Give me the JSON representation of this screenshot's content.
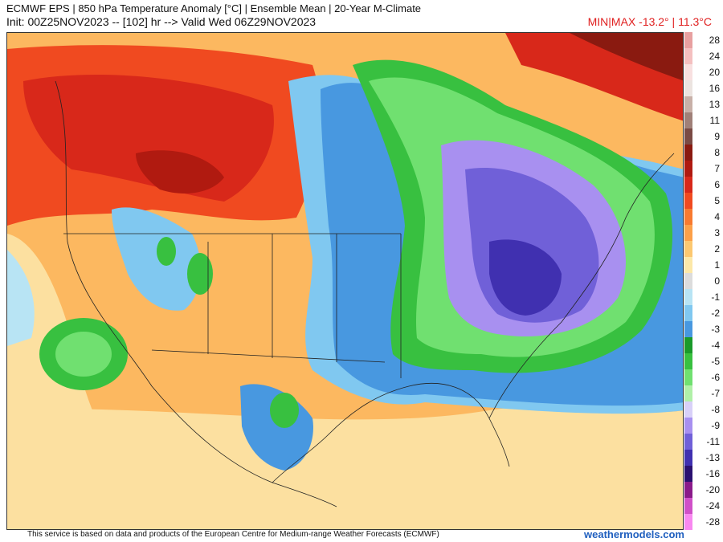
{
  "header": {
    "title_line1": "ECMWF EPS | 850 hPa Temperature Anomaly [°C] | Ensemble Mean | 20-Year M-Climate",
    "title_line2": "Init: 00Z25NOV2023 -- [102] hr --> Valid Wed 06Z29NOV2023",
    "minmax": "MIN|MAX -13.2° | 11.3°C"
  },
  "legend": {
    "levels": [
      {
        "label": "28",
        "color": "#e8a0a0"
      },
      {
        "label": "24",
        "color": "#f4c0c0"
      },
      {
        "label": "20",
        "color": "#f8e0e0"
      },
      {
        "label": "16",
        "color": "#ece4e0"
      },
      {
        "label": "13",
        "color": "#c8b0a8"
      },
      {
        "label": "11",
        "color": "#a08078"
      },
      {
        "label": "9",
        "color": "#7a4a44"
      },
      {
        "label": "8",
        "color": "#8a1a10"
      },
      {
        "label": "7",
        "color": "#b01a10"
      },
      {
        "label": "6",
        "color": "#d8281a"
      },
      {
        "label": "5",
        "color": "#f04a20"
      },
      {
        "label": "4",
        "color": "#f87a30"
      },
      {
        "label": "3",
        "color": "#fca048"
      },
      {
        "label": "2",
        "color": "#fcc870"
      },
      {
        "label": "1",
        "color": "#fce8a8"
      },
      {
        "label": "0",
        "color": "#dcdcdc"
      },
      {
        "label": "-1",
        "color": "#b8e4f4"
      },
      {
        "label": "-2",
        "color": "#80c8f0"
      },
      {
        "label": "-3",
        "color": "#4898e0"
      },
      {
        "label": "-4",
        "color": "#1a9a2a"
      },
      {
        "label": "-5",
        "color": "#38c040"
      },
      {
        "label": "-6",
        "color": "#70e070"
      },
      {
        "label": "-7",
        "color": "#b0f0a8"
      },
      {
        "label": "-8",
        "color": "#d8d0f8"
      },
      {
        "label": "-9",
        "color": "#a890f0"
      },
      {
        "label": "-11",
        "color": "#7060d8"
      },
      {
        "label": "-13",
        "color": "#4030b0"
      },
      {
        "label": "-16",
        "color": "#2a1070"
      },
      {
        "label": "-20",
        "color": "#8a1a8a"
      },
      {
        "label": "-24",
        "color": "#d050c8"
      },
      {
        "label": "-28",
        "color": "#f888f0"
      }
    ]
  },
  "map": {
    "background_color": "#fcb860",
    "ocean_color": "#fce0a0",
    "warm_core_color": "#e83a20",
    "hot_core_color": "#b01a10",
    "cold_ring_colors": [
      "#4898e0",
      "#1a9a2a",
      "#70e070",
      "#a890f0",
      "#7060d8",
      "#4030b0"
    ]
  },
  "footer": {
    "notice": "This service is based on data and products of the European Centre for Medium-range Weather Forecasts (ECMWF)",
    "brand": "weathermodels.com"
  }
}
